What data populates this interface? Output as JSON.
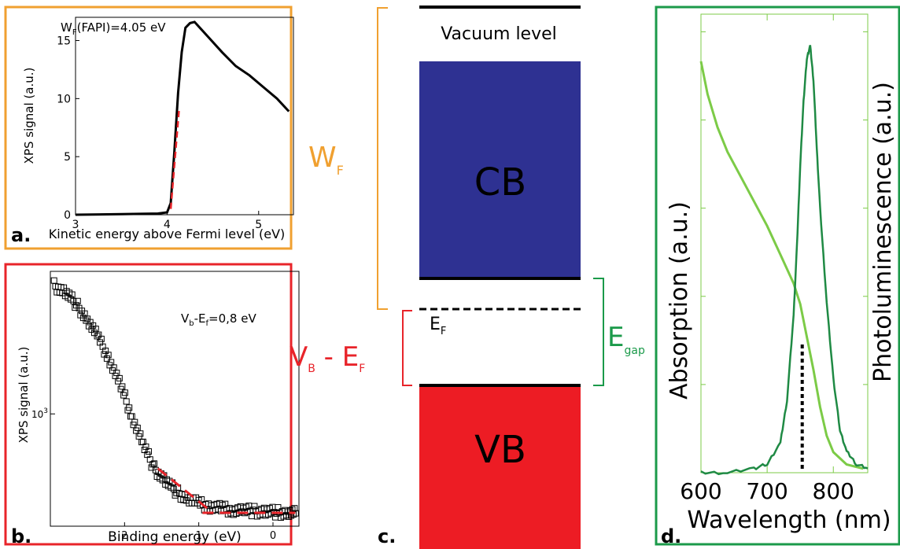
{
  "colors": {
    "orange": "#f0a030",
    "red": "#e8242a",
    "green": "#1b9a4a",
    "cb_blue": "#2e3192",
    "vb_red": "#ed1c24",
    "light_green": "#7ccb47",
    "dark_green": "#1f8a44"
  },
  "panel_a": {
    "letter": "a.",
    "annotation": {
      "main": "W",
      "sub": "F",
      "rest": "(FAPI)=4.05 eV"
    }
  },
  "panel_b": {
    "letter": "b.",
    "annotation": {
      "v": "V",
      "vsub": "b",
      "dash": "-E",
      "esub": "f",
      "rest": "=0,8 eV"
    }
  },
  "panel_c": {
    "letter": "c.",
    "vacuum_label": "Vacuum level",
    "cb_label": "CB",
    "vb_label": "VB",
    "ef_label": {
      "main": "E",
      "sub": "F"
    },
    "wf_label": {
      "main": "W",
      "sub": "F"
    },
    "vbef_label": {
      "v": "V",
      "vsub": "B",
      "mid": " - E",
      "esub": "F"
    },
    "egap_label": {
      "main": "E",
      "sub": "gap"
    }
  },
  "panel_d": {
    "letter": "d."
  },
  "chart_data": [
    {
      "type": "line",
      "panel": "a",
      "xlabel": "Kinetic energy above Fermi level (eV)",
      "ylabel": "XPS signal (a.u.)",
      "xlim": [
        3.0,
        5.38
      ],
      "ylim": [
        0,
        17
      ],
      "x_ticks": [
        3,
        4,
        5
      ],
      "y_ticks": [
        0,
        5,
        10,
        15
      ],
      "series": [
        {
          "x": [
            3.0,
            3.5,
            3.9,
            4.0,
            4.04,
            4.08,
            4.12,
            4.16,
            4.2,
            4.25,
            4.3,
            4.45,
            4.6,
            4.75,
            4.9,
            5.05,
            5.2,
            5.33
          ],
          "y": [
            0.0,
            0.05,
            0.1,
            0.2,
            1.0,
            5.5,
            10.5,
            14.0,
            16.1,
            16.5,
            16.6,
            15.3,
            14.0,
            12.8,
            12.0,
            11.0,
            10.0,
            8.9
          ]
        }
      ],
      "fit": {
        "x": [
          4.04,
          4.13
        ],
        "y": [
          0.5,
          9.0
        ]
      }
    },
    {
      "type": "scatter",
      "panel": "b",
      "xlabel": "Binding energy (eV)",
      "ylabel": "XPS signal (a.u.)",
      "log_y": true,
      "xlim": [
        3.0,
        -0.35
      ],
      "ylim": [
        400,
        3200
      ],
      "x_ticks": [
        2,
        1,
        0
      ],
      "y_ticks": [
        1000
      ],
      "y_tick_labels": [
        "10^3"
      ],
      "series": [
        {
          "x": [
            2.95,
            2.8,
            2.65,
            2.5,
            2.35,
            2.2,
            2.05,
            1.9,
            1.75,
            1.6,
            1.45,
            1.3,
            1.15,
            1.0,
            0.85,
            0.7,
            0.55,
            0.4,
            0.25,
            0.1,
            -0.05,
            -0.2,
            -0.32
          ],
          "y": [
            2850,
            2700,
            2450,
            2150,
            1850,
            1550,
            1250,
            980,
            780,
            640,
            580,
            530,
            500,
            480,
            470,
            462,
            458,
            455,
            452,
            450,
            448,
            446,
            444
          ]
        }
      ],
      "fits": [
        {
          "x": [
            1.55,
            0.85
          ],
          "y": [
            640,
            455
          ]
        },
        {
          "x": [
            0.95,
            -0.3
          ],
          "y": [
            446,
            446
          ]
        }
      ]
    },
    {
      "type": "line",
      "panel": "d",
      "xlabel": "Wavelength (nm)",
      "ylabel": "Absorption (a.u.)",
      "y2label": "Photoluminescence (a.u.)",
      "xlim": [
        600,
        852
      ],
      "x_ticks": [
        600,
        700,
        800
      ],
      "series": [
        {
          "name": "Absorption",
          "x": [
            600,
            610,
            625,
            640,
            660,
            680,
            700,
            720,
            740,
            750,
            755,
            760,
            770,
            780,
            790,
            800,
            820,
            845
          ],
          "y": [
            1.0,
            0.92,
            0.84,
            0.78,
            0.72,
            0.66,
            0.6,
            0.53,
            0.46,
            0.41,
            0.37,
            0.33,
            0.25,
            0.16,
            0.09,
            0.05,
            0.02,
            0.01
          ]
        },
        {
          "name": "Photoluminescence",
          "x": [
            600,
            640,
            680,
            700,
            720,
            730,
            740,
            745,
            750,
            755,
            760,
            765,
            770,
            775,
            780,
            790,
            800,
            810,
            820,
            835,
            852
          ],
          "y": [
            0.0,
            0.0,
            0.01,
            0.02,
            0.07,
            0.17,
            0.37,
            0.53,
            0.72,
            0.87,
            0.97,
            1.0,
            0.92,
            0.76,
            0.62,
            0.4,
            0.22,
            0.1,
            0.05,
            0.02,
            0.01
          ]
        }
      ],
      "marker_x": 753
    }
  ]
}
